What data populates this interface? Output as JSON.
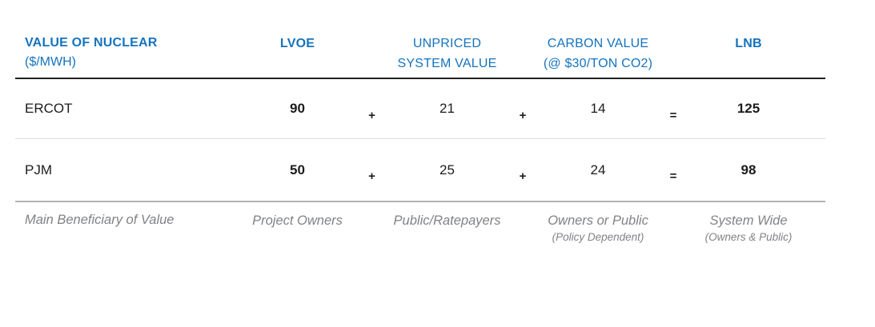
{
  "colors": {
    "header_blue": "#1573BE",
    "body_text": "#1c1c1c",
    "footer_gray": "#808285",
    "rule_dark": "#222222",
    "rule_light": "#dcdcdc",
    "rule_medium": "#b1b3b5",
    "background": "#ffffff"
  },
  "table": {
    "header": {
      "title": "VALUE OF NUCLEAR",
      "subtitle": "($/MWH)",
      "columns": {
        "lvoe": "LVOE",
        "unpriced": "UNPRICED\nSYSTEM VALUE",
        "carbon": "CARBON VALUE\n(@ $30/TON CO2)",
        "lnb": "LNB"
      }
    },
    "operators": {
      "plus": "+",
      "equals": "="
    },
    "rows": [
      {
        "label": "ERCOT",
        "lvoe": "90",
        "unpriced": "21",
        "carbon": "14",
        "lnb": "125"
      },
      {
        "label": "PJM",
        "lvoe": "50",
        "unpriced": "25",
        "carbon": "24",
        "lnb": "98"
      }
    ],
    "footer": {
      "label": "Main Beneficiary of Value",
      "cells": [
        {
          "main": "Project Owners",
          "note": ""
        },
        {
          "main": "Public/Ratepayers",
          "note": ""
        },
        {
          "main": "Owners or Public",
          "note": "(Policy Dependent)"
        },
        {
          "main": "System Wide",
          "note": "(Owners & Public)"
        }
      ]
    }
  },
  "chart_data": {
    "type": "table",
    "title": "VALUE OF NUCLEAR ($/MWH)",
    "columns": [
      "LVOE",
      "UNPRICED SYSTEM VALUE",
      "CARBON VALUE (@ $30/TON CO2)",
      "LNB"
    ],
    "rows": [
      {
        "label": "ERCOT",
        "LVOE": 90,
        "UNPRICED SYSTEM VALUE": 21,
        "CARBON VALUE (@ $30/TON CO2)": 14,
        "LNB": 125
      },
      {
        "label": "PJM",
        "LVOE": 50,
        "UNPRICED SYSTEM VALUE": 25,
        "CARBON VALUE (@ $30/TON CO2)": 24,
        "LNB": 98
      }
    ],
    "formula": "LVOE + UNPRICED SYSTEM VALUE + CARBON VALUE = LNB",
    "beneficiaries": {
      "LVOE": "Project Owners",
      "UNPRICED SYSTEM VALUE": "Public/Ratepayers",
      "CARBON VALUE (@ $30/TON CO2)": "Owners or Public (Policy Dependent)",
      "LNB": "System Wide (Owners & Public)"
    }
  }
}
